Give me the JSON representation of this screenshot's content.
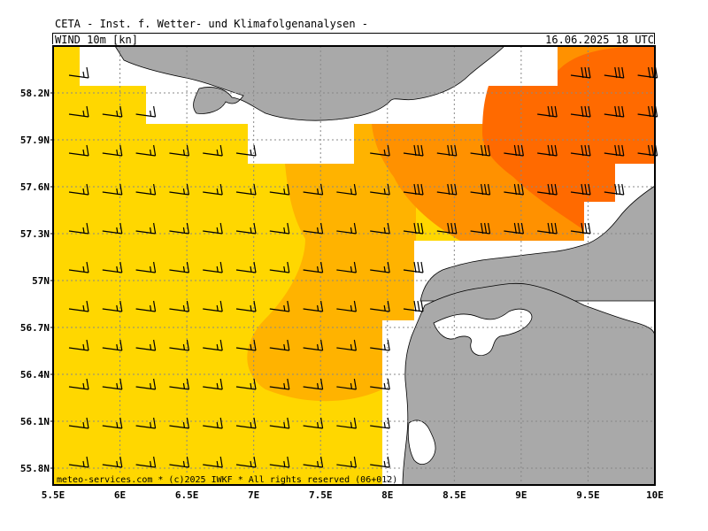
{
  "header": {
    "title": "CETA - Inst. f. Wetter- und Klimafolgenanalysen -",
    "parameter": "WIND 10m [kn]",
    "valid_time": "16.06.2025 18 UTC"
  },
  "axes": {
    "lat_labels": [
      "58.2N",
      "57.9N",
      "57.6N",
      "57.3N",
      "57N",
      "56.7N",
      "56.4N",
      "56.1N",
      "55.8N"
    ],
    "lon_labels": [
      "5.5E",
      "6E",
      "6.5E",
      "7E",
      "7.5E",
      "8E",
      "8.5E",
      "9E",
      "9.5E",
      "10E"
    ]
  },
  "footer": {
    "credit": "meteo-services.com * (c)2025 IWKF * All rights reserved (06+012)"
  },
  "colors": {
    "land": "#a9a9a9",
    "wind_band_1": "#ffd700",
    "wind_band_2": "#ffb300",
    "wind_band_3": "#ff9100",
    "wind_band_4": "#ff6a00",
    "grid": "#888888"
  }
}
